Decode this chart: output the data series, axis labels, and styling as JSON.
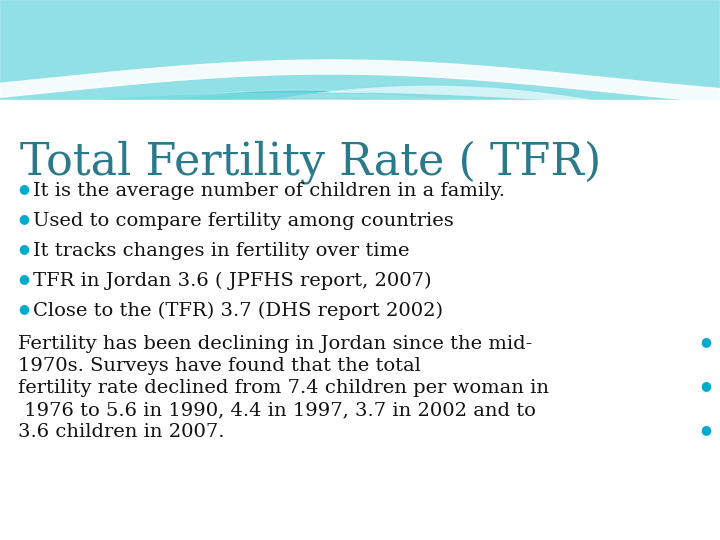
{
  "title": "Total Fertility Rate ( TFR)",
  "title_color": "#2B7A8C",
  "title_fontsize": 32,
  "bullet_points": [
    "It is the average number of children in a family.",
    "Used to compare fertility among countries",
    "It tracks changes in fertility over time",
    "TFR in Jordan 3.6 ( JPFHS report, 2007)",
    "Close to the (TFR) 3.7 (DHS report 2002)"
  ],
  "bullet_color": "#00AACC",
  "bullet_text_color": "#111111",
  "bullet_fontsize": 14,
  "para_line1": "Fertility has been declining in Jordan since the mid-",
  "para_line2": "1970s. Surveys have found that the total",
  "para_line3": "fertility rate declined from 7.4 children per woman in",
  "para_line4": " 1976 to 5.6 in 1990, 4.4 in 1997, 3.7 in 2002 and to",
  "para_line5": "3.6 children in 2007.",
  "paragraph_fontsize": 14,
  "paragraph_color": "#111111",
  "bg_color": "#ffffff",
  "wave_teal_dark": "#3CC8D0",
  "wave_teal_mid": "#7ED8E0",
  "wave_teal_light": "#B8ECF0",
  "wave_white": "#ffffff"
}
